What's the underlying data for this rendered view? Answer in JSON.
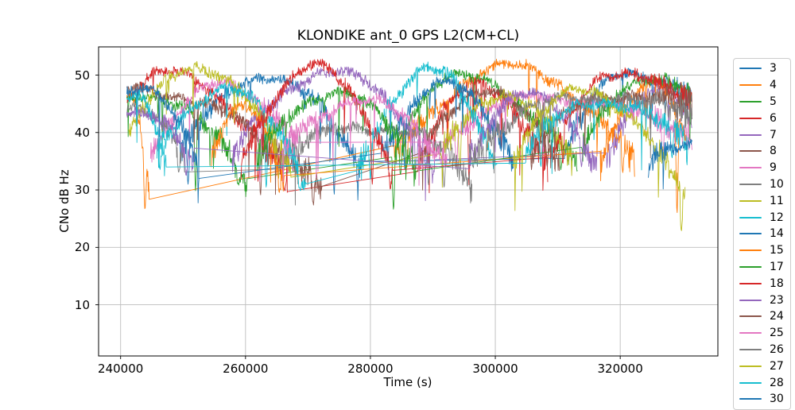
{
  "chart_data": {
    "type": "line",
    "title": "KLONDIKE ant_0 GPS L2(CM+CL)",
    "xlabel": "Time (s)",
    "ylabel": "CNo dB Hz",
    "xlim": [
      236500,
      335600
    ],
    "ylim": [
      1.1,
      54.9
    ],
    "x_ticks": [
      240000,
      260000,
      280000,
      300000,
      320000
    ],
    "y_ticks": [
      10,
      20,
      30,
      40,
      50
    ],
    "grid": true,
    "grid_color": "#bdbdbd",
    "legend_position": "right-outside",
    "legend_clipped_at_bottom": true,
    "series": [
      {
        "prn": "3",
        "color": "#1f77b4",
        "arcs": [
          {
            "t": [
              249500,
              263500,
              278500
            ],
            "v": [
              36.5,
              50.0,
              33.0
            ],
            "fades": [
              [
                274200,
                29.2
              ]
            ]
          },
          {
            "t": [
              311000,
              321300,
              331500
            ],
            "v": [
              36.0,
              50.6,
              45.8
            ],
            "fades": []
          }
        ]
      },
      {
        "prn": "4",
        "color": "#ff7f0e",
        "arcs": [
          {
            "t": [
              241000,
              241600,
              244600
            ],
            "v": [
              45.0,
              45.5,
              29.5
            ],
            "fades": [
              [
                243900,
                26.5
              ]
            ]
          },
          {
            "t": [
              283800,
              302800,
              322300
            ],
            "v": [
              35.5,
              51.5,
              34.5
            ],
            "fades": [
              [
                285800,
                33.8
              ],
              [
                320400,
                33.0
              ]
            ]
          }
        ]
      },
      {
        "prn": "5",
        "color": "#2ca02c",
        "arcs": [
          {
            "t": [
              241000,
              244200,
              260300
            ],
            "v": [
              46.2,
              46.8,
              31.5
            ],
            "fades": [
              [
                252000,
                29.8
              ],
              [
                258800,
                31.0
              ]
            ]
          },
          {
            "t": [
              283400,
              293200,
              313200
            ],
            "v": [
              36.0,
              49.8,
              34.5
            ],
            "fades": [
              [
                283700,
                26.5
              ],
              [
                310500,
                33.5
              ]
            ]
          }
        ]
      },
      {
        "prn": "6",
        "color": "#d62728",
        "arcs": [
          {
            "t": [
              241000,
              246800,
              266800
            ],
            "v": [
              45.8,
              50.4,
              32.0
            ],
            "fades": [
              [
                262000,
                31.5
              ],
              [
                266300,
                29.8
              ]
            ]
          },
          {
            "t": [
              287600,
              297300,
              308400
            ],
            "v": [
              35.5,
              48.2,
              34.0
            ],
            "fades": [
              [
                295800,
                30.8
              ]
            ]
          }
        ]
      },
      {
        "prn": "7",
        "color": "#9467bd",
        "arcs": [
          {
            "t": [
              257800,
              273600,
              290300
            ],
            "v": [
              35.5,
              50.8,
              34.0
            ],
            "fades": [
              [
                287300,
                33.5
              ]
            ]
          },
          {
            "t": [
              317800,
              327300,
              331500
            ],
            "v": [
              35.0,
              48.3,
              41.0
            ],
            "fades": []
          }
        ]
      },
      {
        "prn": "8",
        "color": "#8c564b",
        "arcs": [
          {
            "t": [
              241000,
              243300,
              272300
            ],
            "v": [
              47.2,
              47.5,
              30.5
            ],
            "fades": [
              [
                262400,
                29.0
              ],
              [
                270800,
                27.8
              ]
            ]
          },
          {
            "t": [
              287800,
              297800,
              310300
            ],
            "v": [
              35.5,
              47.4,
              34.5
            ],
            "fades": [
              [
                305800,
                33.5
              ]
            ]
          }
        ]
      },
      {
        "prn": "9",
        "color": "#e377c2",
        "arcs": [
          {
            "t": [
              244800,
              255300,
              268300
            ],
            "v": [
              36.5,
              48.2,
              39.0
            ],
            "fades": [
              [
                262300,
                31.5
              ],
              [
                266800,
                33.0
              ]
            ]
          },
          {
            "t": [
              291800,
              307800,
              331500
            ],
            "v": [
              39.0,
              46.2,
              39.5
            ],
            "fades": [
              [
                293800,
                33.8
              ],
              [
                326800,
                36.0
              ]
            ]
          }
        ]
      },
      {
        "prn": "10",
        "color": "#7f7f7f",
        "arcs": [
          {
            "t": [
              241000,
              242300,
              250300
            ],
            "v": [
              44.0,
              44.3,
              34.5
            ],
            "fades": [
              [
                249300,
                33.0
              ]
            ]
          },
          {
            "t": [
              265800,
              280800,
              296300
            ],
            "v": [
              35.5,
              41.0,
              30.5
            ],
            "p": 2.3,
            "fades": [
              [
                289300,
                30.8
              ],
              [
                291800,
                30.3
              ]
            ]
          }
        ]
      },
      {
        "prn": "11",
        "color": "#bcbd22",
        "arcs": [
          {
            "t": [
              241300,
              251600,
              267300
            ],
            "v": [
              39.0,
              51.7,
              33.5
            ],
            "fades": [
              [
                265300,
                32.0
              ]
            ]
          },
          {
            "t": [
              291300,
              301800,
              312300
            ],
            "v": [
              36.0,
              47.0,
              34.5
            ],
            "fades": [
              [
                294300,
                34.8
              ]
            ]
          }
        ]
      },
      {
        "prn": "12",
        "color": "#17becf",
        "arcs": [
          {
            "t": [
              245800,
              256800,
              269800
            ],
            "v": [
              37.0,
              47.6,
              31.5
            ],
            "fades": [
              [
                263300,
                30.5
              ],
              [
                268800,
                29.8
              ]
            ]
          },
          {
            "t": [
              277800,
              289400,
              300300
            ],
            "v": [
              32.5,
              51.1,
              34.0
            ],
            "fades": [
              [
                280000,
                31.8
              ]
            ]
          }
        ]
      },
      {
        "prn": "14",
        "color": "#1f77b4",
        "arcs": [
          {
            "t": [
              241000,
              243500,
              252600
            ],
            "v": [
              47.5,
              48.2,
              33.0
            ],
            "fades": [
              [
                250800,
                31.0
              ]
            ]
          },
          {
            "t": [
              281800,
              292300,
              303000
            ],
            "v": [
              37.0,
              48.4,
              35.0
            ],
            "fades": [
              [
                285500,
                33.5
              ]
            ]
          }
        ]
      },
      {
        "prn": "15",
        "color": "#ff7f0e",
        "arcs": [
          {
            "t": [
              254500,
              259800,
              266200
            ],
            "v": [
              36.0,
              44.2,
              31.0
            ],
            "fades": [
              [
                265400,
                29.5
              ]
            ]
          },
          {
            "t": [
              316800,
              325800,
              330600
            ],
            "v": [
              35.0,
              48.6,
              39.0
            ],
            "fades": [
              [
                329100,
                25.8
              ]
            ]
          }
        ]
      },
      {
        "prn": "17",
        "color": "#2ca02c",
        "arcs": [
          {
            "t": [
              261800,
              274200,
              287300
            ],
            "v": [
              35.5,
              47.2,
              34.0
            ],
            "fades": [
              [
                284800,
                32.5
              ]
            ]
          },
          {
            "t": [
              313800,
              323800,
              331500
            ],
            "v": [
              36.0,
              49.6,
              46.4
            ],
            "fades": []
          }
        ]
      },
      {
        "prn": "18",
        "color": "#d62728",
        "arcs": [
          {
            "t": [
              259300,
              270900,
              283600
            ],
            "v": [
              35.0,
              51.4,
              33.5
            ],
            "fades": [
              [
                280300,
                31.0
              ],
              [
                283200,
                30.0
              ]
            ]
          },
          {
            "t": [
              308800,
              317800,
              331500
            ],
            "v": [
              35.5,
              49.8,
              46.4
            ],
            "fades": [
              [
                310800,
                34.5
              ]
            ]
          }
        ]
      },
      {
        "prn": "23",
        "color": "#9467bd",
        "arcs": [
          {
            "t": [
              241000,
              242500,
              251800
            ],
            "v": [
              43.5,
              43.8,
              34.0
            ],
            "fades": [
              [
                250500,
                32.5
              ]
            ]
          },
          {
            "t": [
              295800,
              305800,
              316300
            ],
            "v": [
              36.0,
              46.6,
              34.2
            ],
            "fades": [
              [
                313800,
                34.0
              ]
            ]
          }
        ]
      },
      {
        "prn": "24",
        "color": "#8c564b",
        "arcs": [
          {
            "t": [
              305800,
              317800,
              331500
            ],
            "v": [
              35.5,
              46.6,
              44.8
            ],
            "fades": [
              [
                308300,
                34.0
              ]
            ]
          }
        ]
      },
      {
        "prn": "25",
        "color": "#e377c2",
        "arcs": [
          {
            "t": [
              265800,
              278300,
              292300
            ],
            "v": [
              37.0,
              45.6,
              35.0
            ],
            "fades": [
              [
                288300,
                33.5
              ],
              [
                291300,
                34.5
              ]
            ]
          }
        ]
      },
      {
        "prn": "26",
        "color": "#7f7f7f",
        "arcs": [
          {
            "t": [
              295800,
              313300,
              331500
            ],
            "v": [
              36.0,
              46.2,
              43.2
            ],
            "fades": [
              [
                298300,
                34.5
              ]
            ]
          }
        ]
      },
      {
        "prn": "27",
        "color": "#bcbd22",
        "arcs": [
          {
            "t": [
              302800,
              314300,
              330400
            ],
            "v": [
              35.5,
              47.6,
              28.0
            ],
            "fades": [
              [
                329800,
                22.8
              ]
            ]
          }
        ]
      },
      {
        "prn": "28",
        "color": "#17becf",
        "arcs": [
          {
            "t": [
              241000,
              242300,
              247300
            ],
            "v": [
              45.8,
              46.0,
              34.8
            ],
            "fades": [
              [
                246300,
                33.5
              ]
            ]
          },
          {
            "t": [
              304800,
              315800,
              330900
            ],
            "v": [
              36.0,
              45.6,
              37.8
            ],
            "fades": [
              [
                307300,
                34.0
              ],
              [
                328300,
                35.5
              ]
            ]
          }
        ]
      },
      {
        "prn": "30",
        "color": "#1f77b4",
        "arcs": [
          {
            "t": [
              324500,
              331000,
              331500
            ],
            "v": [
              34.5,
              38.5,
              39.0
            ],
            "fades": []
          }
        ]
      }
    ]
  }
}
